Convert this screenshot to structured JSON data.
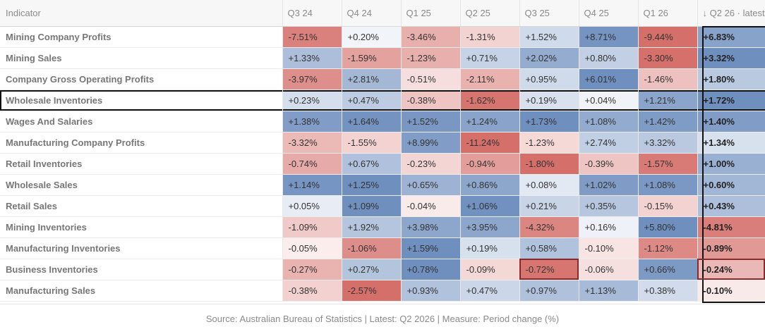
{
  "table": {
    "header_indicator": "Indicator",
    "periods": [
      "Q3 24",
      "Q4 24",
      "Q1 25",
      "Q2 25",
      "Q3 25",
      "Q4 25",
      "Q1 26"
    ],
    "latest_header": "↓ Q2 26 · latest",
    "rows": [
      {
        "name": "Mining Company Profits",
        "values": [
          -7.51,
          0.2,
          -3.46,
          -1.31,
          1.52,
          8.71,
          -9.44
        ],
        "latest": 6.83
      },
      {
        "name": "Mining Sales",
        "values": [
          1.33,
          -1.59,
          -1.23,
          0.71,
          2.02,
          0.8,
          -3.3
        ],
        "latest": 3.32
      },
      {
        "name": "Company Gross Operating Profits",
        "values": [
          -3.97,
          2.81,
          -0.51,
          -2.11,
          0.95,
          6.01,
          -1.46
        ],
        "latest": 1.8
      },
      {
        "name": "Wholesale Inventories",
        "values": [
          0.23,
          0.47,
          -0.38,
          -1.62,
          0.19,
          0.04,
          1.21
        ],
        "latest": 1.72
      },
      {
        "name": "Wages And Salaries",
        "values": [
          1.38,
          1.64,
          1.52,
          1.24,
          1.73,
          1.08,
          1.42
        ],
        "latest": 1.4
      },
      {
        "name": "Manufacturing Company Profits",
        "values": [
          -3.32,
          -1.55,
          8.99,
          -11.24,
          -1.23,
          2.74,
          3.32
        ],
        "latest": 1.34
      },
      {
        "name": "Retail Inventories",
        "values": [
          -0.74,
          0.67,
          -0.23,
          -0.94,
          -1.8,
          -0.39,
          -1.57
        ],
        "latest": 1.0
      },
      {
        "name": "Wholesale Sales",
        "values": [
          1.14,
          1.25,
          0.65,
          0.86,
          0.08,
          1.02,
          1.08
        ],
        "latest": 0.6
      },
      {
        "name": "Retail Sales",
        "values": [
          0.05,
          1.09,
          -0.04,
          1.06,
          0.21,
          0.35,
          -0.15
        ],
        "latest": 0.43
      },
      {
        "name": "Mining Inventories",
        "values": [
          -1.09,
          1.92,
          3.98,
          3.95,
          -4.32,
          0.16,
          5.8
        ],
        "latest": -4.81
      },
      {
        "name": "Manufacturing Inventories",
        "values": [
          -0.05,
          -1.06,
          1.59,
          0.19,
          0.58,
          -0.1,
          -1.12
        ],
        "latest": -0.89
      },
      {
        "name": "Business Inventories",
        "values": [
          -0.27,
          0.27,
          0.78,
          -0.09,
          -0.72,
          -0.06,
          0.66
        ],
        "latest": -0.24
      },
      {
        "name": "Manufacturing Sales",
        "values": [
          -0.38,
          -2.57,
          0.93,
          0.47,
          0.97,
          1.13,
          0.38
        ],
        "latest": -0.1
      }
    ],
    "selected_row": 3,
    "highlighted_cells": [
      [
        11,
        4
      ],
      [
        11,
        7
      ]
    ],
    "colors": {
      "positive": "#6f8fbf",
      "negative": "#d56f6a",
      "neutral": "#ffffff"
    }
  },
  "chart_data": {
    "type": "heatmap",
    "x": [
      "Q3 24",
      "Q4 24",
      "Q1 25",
      "Q2 25",
      "Q3 25",
      "Q4 25",
      "Q1 26",
      "Q2 26"
    ],
    "y": [
      "Mining Company Profits",
      "Mining Sales",
      "Company Gross Operating Profits",
      "Wholesale Inventories",
      "Wages And Salaries",
      "Manufacturing Company Profits",
      "Retail Inventories",
      "Wholesale Sales",
      "Retail Sales",
      "Mining Inventories",
      "Manufacturing Inventories",
      "Business Inventories",
      "Manufacturing Sales"
    ],
    "unit": "%"
  },
  "footer": "Source: Australian Bureau of Statistics | Latest: Q2 2026 | Measure: Period change (%)"
}
